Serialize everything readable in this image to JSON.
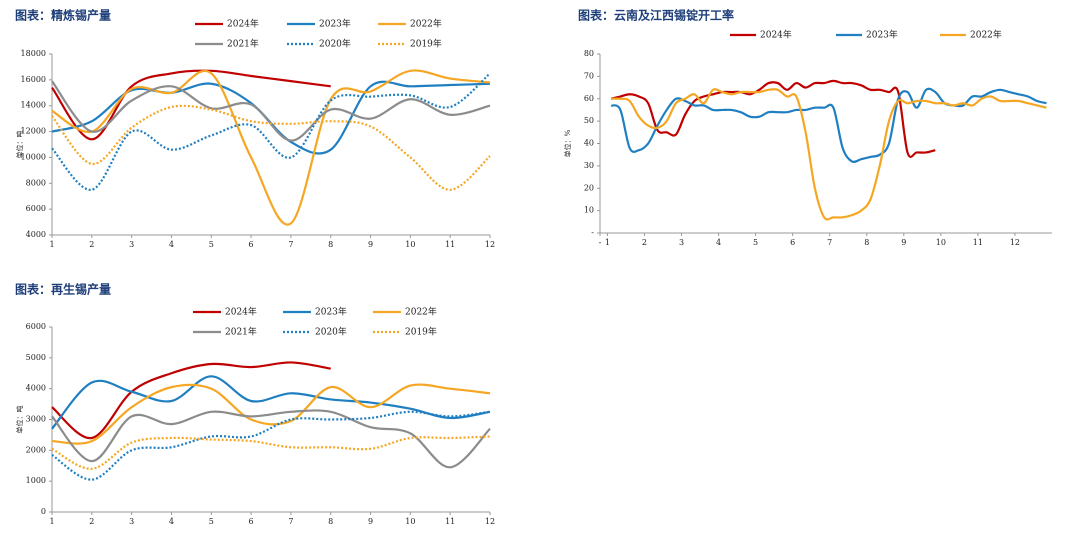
{
  "chart_data": [
    {
      "type": "line",
      "title": "图表：精炼锡产量",
      "ylabel": "单位：吨",
      "x": [
        1,
        2,
        3,
        4,
        5,
        6,
        7,
        8,
        9,
        10,
        11,
        12
      ],
      "xlim": [
        1,
        12
      ],
      "xticks": [
        1,
        2,
        3,
        4,
        5,
        6,
        7,
        8,
        9,
        10,
        11,
        12
      ],
      "ylim": [
        4000,
        18000
      ],
      "yticks": [
        4000,
        6000,
        8000,
        10000,
        12000,
        14000,
        16000,
        18000
      ],
      "series": [
        {
          "name": "2024年",
          "color": "#c00000",
          "style": "solid",
          "values": [
            15400,
            11400,
            15500,
            16500,
            16700,
            16300,
            15900,
            15500,
            null,
            null,
            null,
            null
          ]
        },
        {
          "name": "2023年",
          "color": "#1f7fc1",
          "style": "solid",
          "values": [
            12000,
            12800,
            15200,
            15000,
            15700,
            14200,
            11200,
            10600,
            15500,
            15500,
            15600,
            15700
          ]
        },
        {
          "name": "2022年",
          "color": "#f5a623",
          "style": "solid",
          "values": [
            13600,
            12000,
            15300,
            15000,
            16500,
            10000,
            4900,
            14500,
            15100,
            16700,
            16100,
            15800
          ]
        },
        {
          "name": "2021年",
          "color": "#8c8c8c",
          "style": "solid",
          "values": [
            15900,
            12000,
            14400,
            15500,
            13800,
            14100,
            11300,
            13700,
            13000,
            14500,
            13300,
            14000
          ]
        },
        {
          "name": "2020年",
          "color": "#1f7fc1",
          "style": "dotted",
          "values": [
            10700,
            7500,
            12000,
            10600,
            11700,
            12500,
            10000,
            14400,
            14700,
            14800,
            13900,
            16500
          ]
        },
        {
          "name": "2019年",
          "color": "#f5a623",
          "style": "dotted",
          "values": [
            13200,
            9500,
            12300,
            13900,
            13700,
            12800,
            12600,
            12800,
            12400,
            10000,
            7500,
            10100
          ]
        }
      ]
    },
    {
      "type": "line",
      "title": "图表：云南及江西锡锭开工率",
      "ylabel": "单位：%",
      "x": [
        1.1,
        1.35,
        1.6,
        1.85,
        2.1,
        2.35,
        2.6,
        2.85,
        3.1,
        3.35,
        3.6,
        3.85,
        4.1,
        4.35,
        4.6,
        4.85,
        5.1,
        5.35,
        5.6,
        5.85,
        6.1,
        6.35,
        6.6,
        6.85,
        7.1,
        7.35,
        7.6,
        7.85,
        8.1,
        8.35,
        8.6,
        8.85,
        9.1,
        9.35,
        9.6,
        9.85,
        10.1,
        10.35,
        10.6,
        10.85,
        11.1,
        11.35,
        11.6,
        11.85,
        12.1,
        12.35,
        12.6,
        12.85
      ],
      "xlim": [
        0.8,
        13
      ],
      "xticks": [
        {
          "value": 0.8,
          "label": "-"
        },
        1,
        2,
        3,
        4,
        5,
        6,
        7,
        8,
        9,
        10,
        11,
        12
      ],
      "ylim": [
        0,
        80
      ],
      "yticks": [
        {
          "value": 0,
          "label": "-"
        },
        10,
        20,
        30,
        40,
        50,
        60,
        70,
        80
      ],
      "series": [
        {
          "name": "2024年",
          "color": "#c00000",
          "style": "solid",
          "values": [
            60,
            61,
            62,
            61,
            58,
            46,
            45,
            44,
            53,
            59,
            61,
            62,
            63,
            63,
            63,
            62,
            64,
            67,
            67,
            64,
            67,
            65,
            67,
            67,
            68,
            67,
            67,
            66,
            64,
            64,
            63,
            63,
            36,
            36,
            36,
            37,
            null,
            null,
            null,
            null,
            null,
            null,
            null,
            null,
            null,
            null,
            null,
            null
          ]
        },
        {
          "name": "2023年",
          "color": "#1f7fc1",
          "style": "solid",
          "values": [
            57,
            55,
            38,
            37,
            40,
            48,
            55,
            60,
            59,
            57,
            57,
            55,
            55,
            55,
            54,
            52,
            52,
            54,
            54,
            54,
            55,
            55,
            56,
            56,
            56,
            38,
            32,
            33,
            34,
            35,
            40,
            60,
            63,
            56,
            64,
            63,
            58,
            57,
            57,
            61,
            61,
            63,
            64,
            63,
            62,
            61,
            59,
            58
          ]
        },
        {
          "name": "2022年",
          "color": "#f5a623",
          "style": "solid",
          "values": [
            60,
            60,
            59,
            52,
            48,
            47,
            50,
            58,
            60,
            62,
            58,
            64,
            63,
            62,
            63,
            63,
            63,
            64,
            64,
            61,
            61,
            45,
            20,
            7,
            7,
            7,
            8,
            10,
            15,
            30,
            50,
            59,
            58,
            59,
            59,
            58,
            58,
            57,
            58,
            57,
            60,
            61,
            59,
            59,
            59,
            58,
            57,
            56
          ]
        }
      ]
    },
    {
      "type": "line",
      "title": "图表：再生锡产量",
      "ylabel": "单位：吨",
      "x": [
        1,
        2,
        3,
        4,
        5,
        6,
        7,
        8,
        9,
        10,
        11,
        12
      ],
      "xlim": [
        1,
        12
      ],
      "xticks": [
        1,
        2,
        3,
        4,
        5,
        6,
        7,
        8,
        9,
        10,
        11,
        12
      ],
      "ylim": [
        0,
        6000
      ],
      "yticks": [
        0,
        1000,
        2000,
        3000,
        4000,
        5000,
        6000
      ],
      "series": [
        {
          "name": "2024年",
          "color": "#c00000",
          "style": "solid",
          "values": [
            3400,
            2400,
            3900,
            4500,
            4800,
            4700,
            4850,
            4650,
            null,
            null,
            null,
            null
          ]
        },
        {
          "name": "2023年",
          "color": "#1f7fc1",
          "style": "solid",
          "values": [
            2700,
            4200,
            3900,
            3600,
            4400,
            3600,
            3850,
            3650,
            3550,
            3350,
            3050,
            3250
          ]
        },
        {
          "name": "2022年",
          "color": "#f5a623",
          "style": "solid",
          "values": [
            2300,
            2300,
            3400,
            4050,
            4000,
            3000,
            2950,
            4050,
            3400,
            4100,
            4000,
            3850
          ]
        },
        {
          "name": "2021年",
          "color": "#8c8c8c",
          "style": "solid",
          "values": [
            3100,
            1650,
            3100,
            2850,
            3250,
            3100,
            3250,
            3250,
            2750,
            2550,
            1450,
            2700
          ]
        },
        {
          "name": "2020年",
          "color": "#1f7fc1",
          "style": "dotted",
          "values": [
            1850,
            1050,
            2000,
            2100,
            2450,
            2450,
            3000,
            3000,
            3050,
            3250,
            3100,
            3250
          ]
        },
        {
          "name": "2019年",
          "color": "#f5a623",
          "style": "dotted",
          "values": [
            2050,
            1400,
            2250,
            2400,
            2350,
            2300,
            2100,
            2100,
            2050,
            2400,
            2400,
            2450
          ]
        }
      ]
    }
  ]
}
